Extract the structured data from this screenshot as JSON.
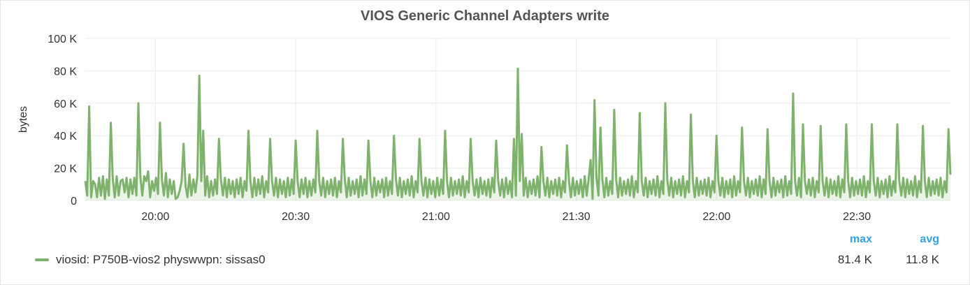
{
  "chart_data": {
    "type": "area",
    "title": "VIOS Generic Channel Adapters write",
    "ylabel": "bytes",
    "ylim": [
      0,
      100000
    ],
    "y_ticks": [
      "0",
      "20 K",
      "40 K",
      "60 K",
      "80 K",
      "100 K"
    ],
    "x_ticks": [
      "20:00",
      "20:30",
      "21:00",
      "21:30",
      "22:00",
      "22:30"
    ],
    "x_range_minutes": [
      -15,
      170
    ],
    "x_tick_minutes": [
      0,
      30,
      60,
      90,
      120,
      150
    ],
    "grid": true,
    "series": [
      {
        "name": "viosid: P750B-vios2 physwwpn: sissas0",
        "color": "#7eb26d",
        "values": [
          12000,
          3000,
          58000,
          2000,
          12000,
          10000,
          2000,
          14000,
          3000,
          15000,
          1000,
          13000,
          3000,
          48000,
          13000,
          2000,
          15000,
          3000,
          12000,
          13000,
          5000,
          14000,
          2000,
          13000,
          4000,
          14000,
          3000,
          60000,
          15000,
          3000,
          15000,
          12000,
          18000,
          2000,
          12000,
          6000,
          14000,
          4000,
          48000,
          13000,
          3000,
          17000,
          2000,
          13000,
          4000,
          12000,
          1000,
          2000,
          6000,
          12000,
          35000,
          9000,
          2000,
          16000,
          3000,
          13000,
          5000,
          15000,
          77000,
          12000,
          43000,
          3000,
          15000,
          2000,
          12000,
          3000,
          13000,
          4000,
          38000,
          13000,
          3000,
          14000,
          2000,
          13000,
          4000,
          12000,
          2000,
          13000,
          4000,
          14000,
          2000,
          12000,
          6000,
          43000,
          12000,
          2000,
          14000,
          3000,
          13000,
          4000,
          15000,
          2000,
          12000,
          5000,
          38000,
          12000,
          3000,
          14000,
          2000,
          13000,
          4000,
          12000,
          2000,
          14000,
          3000,
          13000,
          4000,
          37000,
          12000,
          2000,
          13000,
          4000,
          14000,
          2000,
          12000,
          3000,
          13000,
          5000,
          43000,
          12000,
          3000,
          14000,
          2000,
          12000,
          4000,
          13000,
          3000,
          14000,
          2000,
          12000,
          5000,
          38000,
          13000,
          2000,
          14000,
          3000,
          12000,
          4000,
          13000,
          2000,
          15000,
          3000,
          13000,
          4000,
          37000,
          12000,
          2000,
          14000,
          3000,
          12000,
          5000,
          13000,
          2000,
          14000,
          3000,
          12000,
          4000,
          40000,
          13000,
          3000,
          14000,
          2000,
          12000,
          4000,
          13000,
          3000,
          15000,
          2000,
          12000,
          5000,
          38000,
          12000,
          3000,
          14000,
          2000,
          13000,
          4000,
          12000,
          2000,
          14000,
          3000,
          13000,
          4000,
          43000,
          12000,
          2000,
          14000,
          3000,
          12000,
          4000,
          13000,
          3000,
          15000,
          2000,
          12000,
          5000,
          38000,
          12000,
          3000,
          13000,
          2000,
          14000,
          4000,
          12000,
          3000,
          13000,
          2000,
          14000,
          5000,
          37000,
          12000,
          3000,
          13000,
          2000,
          14000,
          4000,
          12000,
          2000,
          38000,
          3000,
          81400,
          12000,
          41000,
          3000,
          14000,
          2000,
          12000,
          4000,
          13000,
          3000,
          15000,
          2000,
          33000,
          12000,
          3000,
          14000,
          2000,
          12000,
          4000,
          13000,
          3000,
          14000,
          2000,
          12000,
          5000,
          34000,
          12000,
          2000,
          14000,
          3000,
          12000,
          4000,
          13000,
          2000,
          15000,
          3000,
          13000,
          25000,
          1000,
          62000,
          14000,
          3000,
          45000,
          13000,
          2000,
          14000,
          3000,
          12000,
          4000,
          56000,
          13000,
          2000,
          14000,
          3000,
          12000,
          4000,
          13000,
          3000,
          15000,
          2000,
          12000,
          5000,
          54000,
          12000,
          3000,
          14000,
          2000,
          12000,
          4000,
          13000,
          3000,
          15000,
          2000,
          12000,
          4000,
          60000,
          13000,
          3000,
          14000,
          2000,
          12000,
          4000,
          13000,
          3000,
          15000,
          2000,
          12000,
          5000,
          53000,
          12000,
          2000,
          14000,
          3000,
          12000,
          4000,
          13000,
          3000,
          14000,
          2000,
          12000,
          5000,
          40000,
          12000,
          3000,
          14000,
          2000,
          12000,
          4000,
          13000,
          2000,
          15000,
          3000,
          12000,
          5000,
          45000,
          12000,
          3000,
          14000,
          2000,
          12000,
          4000,
          13000,
          3000,
          15000,
          2000,
          13000,
          4000,
          44000,
          12000,
          2000,
          14000,
          3000,
          12000,
          5000,
          13000,
          2000,
          15000,
          3000,
          12000,
          4000,
          66000,
          12000,
          3000,
          14000,
          2000,
          47000,
          12000,
          4000,
          13000,
          3000,
          14000,
          2000,
          12000,
          5000,
          46000,
          12000,
          3000,
          14000,
          2000,
          13000,
          4000,
          12000,
          3000,
          15000,
          2000,
          13000,
          5000,
          47000,
          12000,
          2000,
          14000,
          3000,
          12000,
          4000,
          13000,
          3000,
          15000,
          2000,
          12000,
          5000,
          47000,
          12000,
          3000,
          14000,
          2000,
          12000,
          4000,
          13000,
          2000,
          15000,
          3000,
          12000,
          5000,
          47000,
          12000,
          3000,
          14000,
          2000,
          13000,
          4000,
          12000,
          3000,
          15000,
          2000,
          12000,
          5000,
          46000,
          12000,
          2000,
          14000,
          3000,
          12000,
          4000,
          13000,
          3000,
          14000,
          2000,
          12000,
          5000,
          44000,
          16000
        ]
      }
    ]
  },
  "legend": {
    "series_label": "viosid: P750B-vios2 physwwpn: sissas0",
    "max_header": "max",
    "avg_header": "avg",
    "max_value": "81.4 K",
    "avg_value": "11.8 K"
  }
}
